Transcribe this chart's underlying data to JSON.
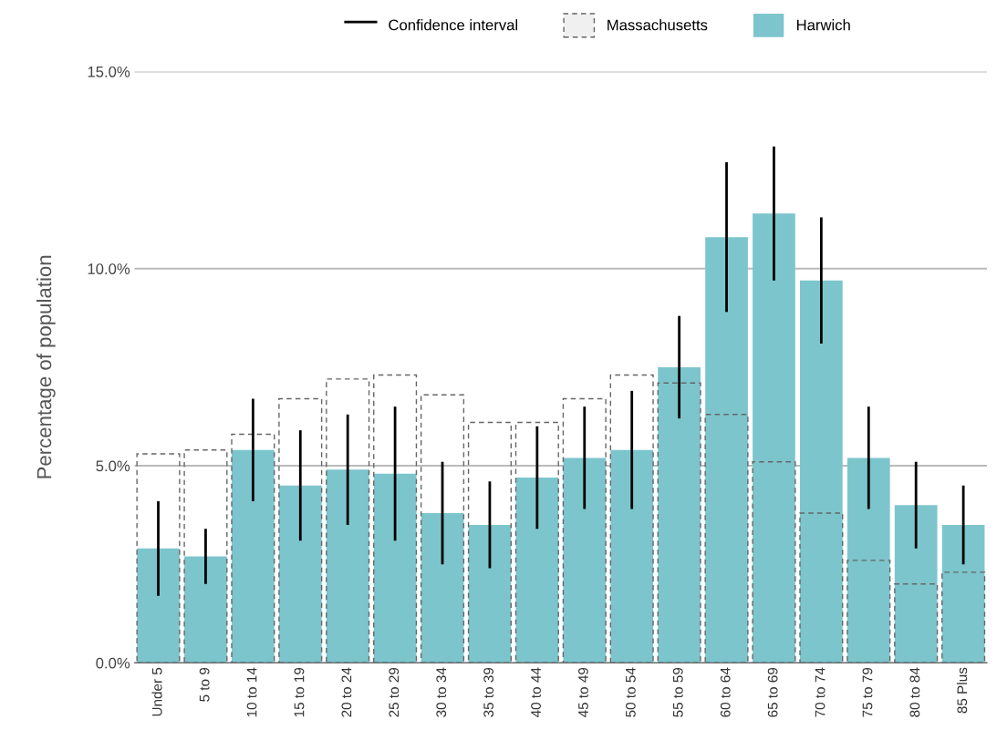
{
  "chart_data": {
    "type": "bar",
    "ylabel": "Percentage of population",
    "categories": [
      "Under 5",
      "5 to 9",
      "10 to 14",
      "15 to 19",
      "20 to 24",
      "25 to 29",
      "30 to 34",
      "35 to 39",
      "40 to 44",
      "45 to 49",
      "50 to 54",
      "55 to 59",
      "60 to 64",
      "65 to 69",
      "70 to 74",
      "75 to 79",
      "80 to 84",
      "85 Plus"
    ],
    "series": [
      {
        "name": "Massachusetts",
        "color": "#666666",
        "line_style": "dashed",
        "values": [
          5.3,
          5.4,
          5.8,
          6.7,
          7.2,
          7.3,
          6.8,
          6.1,
          6.1,
          6.7,
          7.3,
          7.1,
          6.3,
          5.1,
          3.8,
          2.6,
          2.0,
          2.3
        ]
      },
      {
        "name": "Harwich",
        "color": "#7cc5cd",
        "values": [
          2.9,
          2.7,
          5.4,
          4.5,
          4.9,
          4.8,
          3.8,
          3.5,
          4.7,
          5.2,
          5.4,
          7.5,
          10.8,
          11.4,
          9.7,
          5.2,
          4.0,
          3.5
        ],
        "errors": [
          [
            1.7,
            4.1
          ],
          [
            2.0,
            3.4
          ],
          [
            4.1,
            6.7
          ],
          [
            3.1,
            5.9
          ],
          [
            3.5,
            6.3
          ],
          [
            3.1,
            6.5
          ],
          [
            2.5,
            5.1
          ],
          [
            2.4,
            4.6
          ],
          [
            3.4,
            6.0
          ],
          [
            3.9,
            6.5
          ],
          [
            3.9,
            6.9
          ],
          [
            6.2,
            8.8
          ],
          [
            8.9,
            12.7
          ],
          [
            9.7,
            13.1
          ],
          [
            8.1,
            11.3
          ],
          [
            3.9,
            6.5
          ],
          [
            2.9,
            5.1
          ],
          [
            2.5,
            4.5
          ]
        ]
      }
    ],
    "annotations": [
      "Confidence interval"
    ],
    "ylim": [
      0,
      15
    ],
    "yticks": [
      {
        "value": 0,
        "label": "0.0%"
      },
      {
        "value": 5,
        "label": "5.0%"
      },
      {
        "value": 10,
        "label": "10.0%"
      },
      {
        "value": 15,
        "label": "15.0%"
      }
    ],
    "grid": "y",
    "legend": "top"
  }
}
